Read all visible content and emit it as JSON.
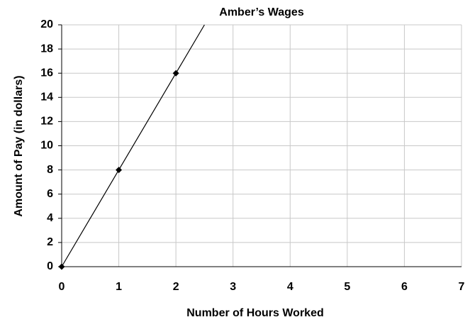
{
  "chart_data": {
    "type": "line",
    "title": "Amber’s Wages",
    "x_label": "Number of Hours Worked",
    "y_label": "Amount of Pay (in dollars)",
    "x": [
      0,
      1,
      2,
      2.5
    ],
    "values": [
      0,
      8,
      16,
      20
    ],
    "markers": [
      true,
      true,
      true,
      false
    ],
    "color": "#000000",
    "xlim": [
      0,
      7
    ],
    "xticks": [
      0,
      1,
      2,
      3,
      4,
      5,
      6,
      7
    ],
    "ylim": [
      0,
      20
    ],
    "yticks": [
      0,
      2,
      4,
      6,
      8,
      10,
      12,
      14,
      16,
      18,
      20
    ],
    "grid": true
  }
}
